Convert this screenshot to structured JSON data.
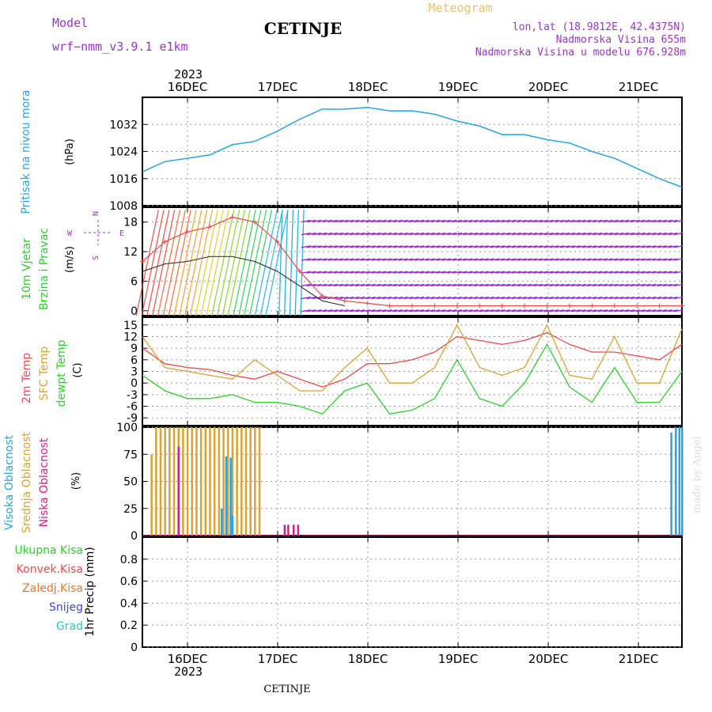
{
  "header": {
    "model_label": "Model",
    "model_name": "wrf−nmm_v3.9.1  e1km",
    "title": "CETINJE",
    "meteogram_label": "Meteogram",
    "lonlat": "lon,lat (18.9812E, 42.4375N)",
    "altitude": "Nadmorska Visina 655m",
    "model_altitude": "Nadmorska Visina u modelu 676.928m",
    "year_top": "2023",
    "year_bottom": "2023",
    "footer_title": "CETINJE",
    "watermark": "made by Angel"
  },
  "colors": {
    "pressure": "#29a3e0",
    "temp2m": "#e84a4a",
    "sfctemp": "#d9a233",
    "dewpt": "#2ecc2e",
    "visoka": "#29a3e0",
    "srednja": "#d9a233",
    "niska": "#cc2288",
    "wind_purple": "#9933cc",
    "wind_speed": "#e84a4a"
  },
  "chart_data": [
    {
      "type": "line",
      "panel": "pressure",
      "ylabel_left": "Pritisak na nivou mora",
      "units": "(hPa)",
      "x_ticks": [
        "16DEC",
        "17DEC",
        "18DEC",
        "19DEC",
        "20DEC",
        "21DEC"
      ],
      "ylim": [
        1008,
        1040
      ],
      "y_ticks": [
        1008,
        1016,
        1024,
        1032
      ],
      "grid": true,
      "series": [
        {
          "x_days": [
            0,
            0.25,
            0.5,
            0.75,
            1.0,
            1.25,
            1.5,
            1.75,
            2.0,
            2.25,
            2.5,
            2.75,
            3.0,
            3.25,
            3.5,
            3.75,
            4.0,
            4.25,
            4.5,
            4.75,
            5.0,
            5.25,
            5.5,
            5.75,
            6.0
          ],
          "values": [
            1018,
            1021,
            1022,
            1023,
            1026,
            1027,
            1030,
            1033.5,
            1036.5,
            1036.5,
            1037,
            1036,
            1036,
            1035,
            1033,
            1031.5,
            1029,
            1029,
            1027.5,
            1026.5,
            1024,
            1022,
            1019,
            1016,
            1013.5
          ]
        }
      ]
    },
    {
      "type": "line",
      "panel": "wind",
      "ylabel_left": [
        "10m Vjetar",
        "Brzina i Pravac"
      ],
      "units": "(m/s)",
      "ylim": [
        -1,
        21
      ],
      "y_ticks": [
        0,
        6,
        12,
        18
      ],
      "grid": true,
      "compass": [
        "N",
        "E",
        "S",
        "W"
      ],
      "series": [
        {
          "name": "speed",
          "x_days": [
            0,
            0.25,
            0.5,
            0.75,
            1.0,
            1.25,
            1.5,
            1.75,
            2.0,
            2.25,
            2.5,
            2.75,
            3.0,
            3.25,
            3.5,
            3.75,
            4.0,
            4.25,
            4.5,
            4.75,
            5.0,
            5.25,
            5.5,
            5.75,
            6.0
          ],
          "values": [
            10,
            14,
            16,
            17,
            19,
            18,
            14,
            8,
            3,
            2,
            1.5,
            1,
            1,
            1,
            1,
            1,
            1,
            1,
            1,
            1,
            1,
            1,
            1,
            1,
            1
          ]
        },
        {
          "name": "gust",
          "x_days": [
            0,
            0.25,
            0.5,
            0.75,
            1.0,
            1.25,
            1.5,
            1.75,
            2.0,
            2.25
          ],
          "values": [
            8,
            9.5,
            10,
            11,
            11,
            10,
            8,
            5,
            2,
            1
          ]
        }
      ]
    },
    {
      "type": "line",
      "panel": "temperature",
      "ylabel_left": [
        "2m Temp",
        "SFC Temp",
        "dewpt Temp"
      ],
      "units": "(C)",
      "ylim": [
        -11,
        17
      ],
      "y_ticks": [
        -9,
        -6,
        -3,
        0,
        3,
        6,
        9,
        12,
        15
      ],
      "grid": true,
      "series": [
        {
          "name": "2m Temp",
          "x_days": [
            0,
            0.25,
            0.5,
            0.75,
            1.0,
            1.25,
            1.5,
            1.75,
            2.0,
            2.25,
            2.5,
            2.75,
            3.0,
            3.25,
            3.5,
            3.75,
            4.0,
            4.25,
            4.5,
            4.75,
            5.0,
            5.25,
            5.5,
            5.75,
            6.0
          ],
          "values": [
            9,
            5,
            4,
            3.5,
            2,
            1,
            3,
            1,
            -1,
            1,
            5,
            5,
            6,
            8,
            12,
            11,
            10,
            11,
            13,
            10,
            8,
            8,
            7,
            6,
            10
          ]
        },
        {
          "name": "SFC Temp",
          "x_days": [
            0,
            0.25,
            0.5,
            0.75,
            1.0,
            1.25,
            1.5,
            1.75,
            2.0,
            2.25,
            2.5,
            2.75,
            3.0,
            3.25,
            3.5,
            3.75,
            4.0,
            4.25,
            4.5,
            4.75,
            5.0,
            5.25,
            5.5,
            5.75,
            6.0
          ],
          "values": [
            12,
            4,
            3,
            2,
            1,
            6,
            2,
            -2,
            -2,
            4,
            9,
            0,
            0,
            4,
            15,
            4,
            2,
            4,
            15,
            2,
            1,
            12,
            0,
            0,
            14
          ]
        },
        {
          "name": "dewpt Temp",
          "x_days": [
            0,
            0.25,
            0.5,
            0.75,
            1.0,
            1.25,
            1.5,
            1.75,
            2.0,
            2.25,
            2.5,
            2.75,
            3.0,
            3.25,
            3.5,
            3.75,
            4.0,
            4.25,
            4.5,
            4.75,
            5.0,
            5.25,
            5.5,
            5.75,
            6.0
          ],
          "values": [
            2,
            -2,
            -4,
            -4,
            -3,
            -5,
            -5,
            -6,
            -8,
            -2,
            0,
            -8,
            -7,
            -4,
            6,
            -4,
            -6,
            0,
            10,
            -1,
            -5,
            4,
            -5,
            -5,
            3
          ]
        }
      ]
    },
    {
      "type": "bar",
      "panel": "cloud",
      "ylabel_left": [
        "Visoka Oblacnost",
        "Srednja Oblacnost",
        "Niska Oblacnost"
      ],
      "units": "(%)",
      "ylim": [
        0,
        100
      ],
      "y_ticks": [
        0,
        25,
        50,
        75,
        100
      ],
      "grid": true,
      "series": [
        {
          "name": "Srednja Oblacnost",
          "x_days": [
            0.1,
            0.15,
            0.2,
            0.25,
            0.3,
            0.35,
            0.4,
            0.45,
            0.5,
            0.55,
            0.6,
            0.65,
            0.7,
            0.75,
            0.8,
            0.85,
            0.9,
            0.95,
            1.0,
            1.05,
            1.1,
            1.15,
            1.2,
            1.25,
            1.3
          ],
          "values": [
            75,
            100,
            100,
            100,
            100,
            100,
            100,
            100,
            100,
            100,
            100,
            100,
            100,
            100,
            100,
            100,
            100,
            100,
            100,
            100,
            100,
            100,
            100,
            100,
            100
          ]
        },
        {
          "name": "Visoka Oblacnost",
          "x_days": [
            0.88,
            0.93,
            0.98,
            1.0,
            5.88,
            5.93,
            5.97,
            6.0
          ],
          "values": [
            25,
            73,
            72,
            18,
            95,
            100,
            100,
            100
          ]
        },
        {
          "name": "Niska Oblacnost",
          "x_days": [
            0.4,
            1.58,
            1.62,
            1.68,
            1.73
          ],
          "values": [
            82,
            10,
            10,
            10,
            10
          ]
        }
      ]
    },
    {
      "type": "bar",
      "panel": "precip",
      "ylabel_left": "1hr Precip (mm)",
      "ylim": [
        0,
        1
      ],
      "y_ticks": [
        0,
        0.2,
        0.4,
        0.6,
        0.8
      ],
      "grid": true,
      "legend": [
        {
          "label": "Ukupna  Kisa",
          "color": "#2ecc2e"
        },
        {
          "label": "Konvek.Kisa",
          "color": "#e84a4a"
        },
        {
          "label": "Zaledj.Kisa",
          "color": "#e8752e"
        },
        {
          "label": "Snijeg",
          "color": "#4444dd"
        },
        {
          "label": "Grad",
          "color": "#22ccbb"
        }
      ],
      "series": []
    }
  ]
}
